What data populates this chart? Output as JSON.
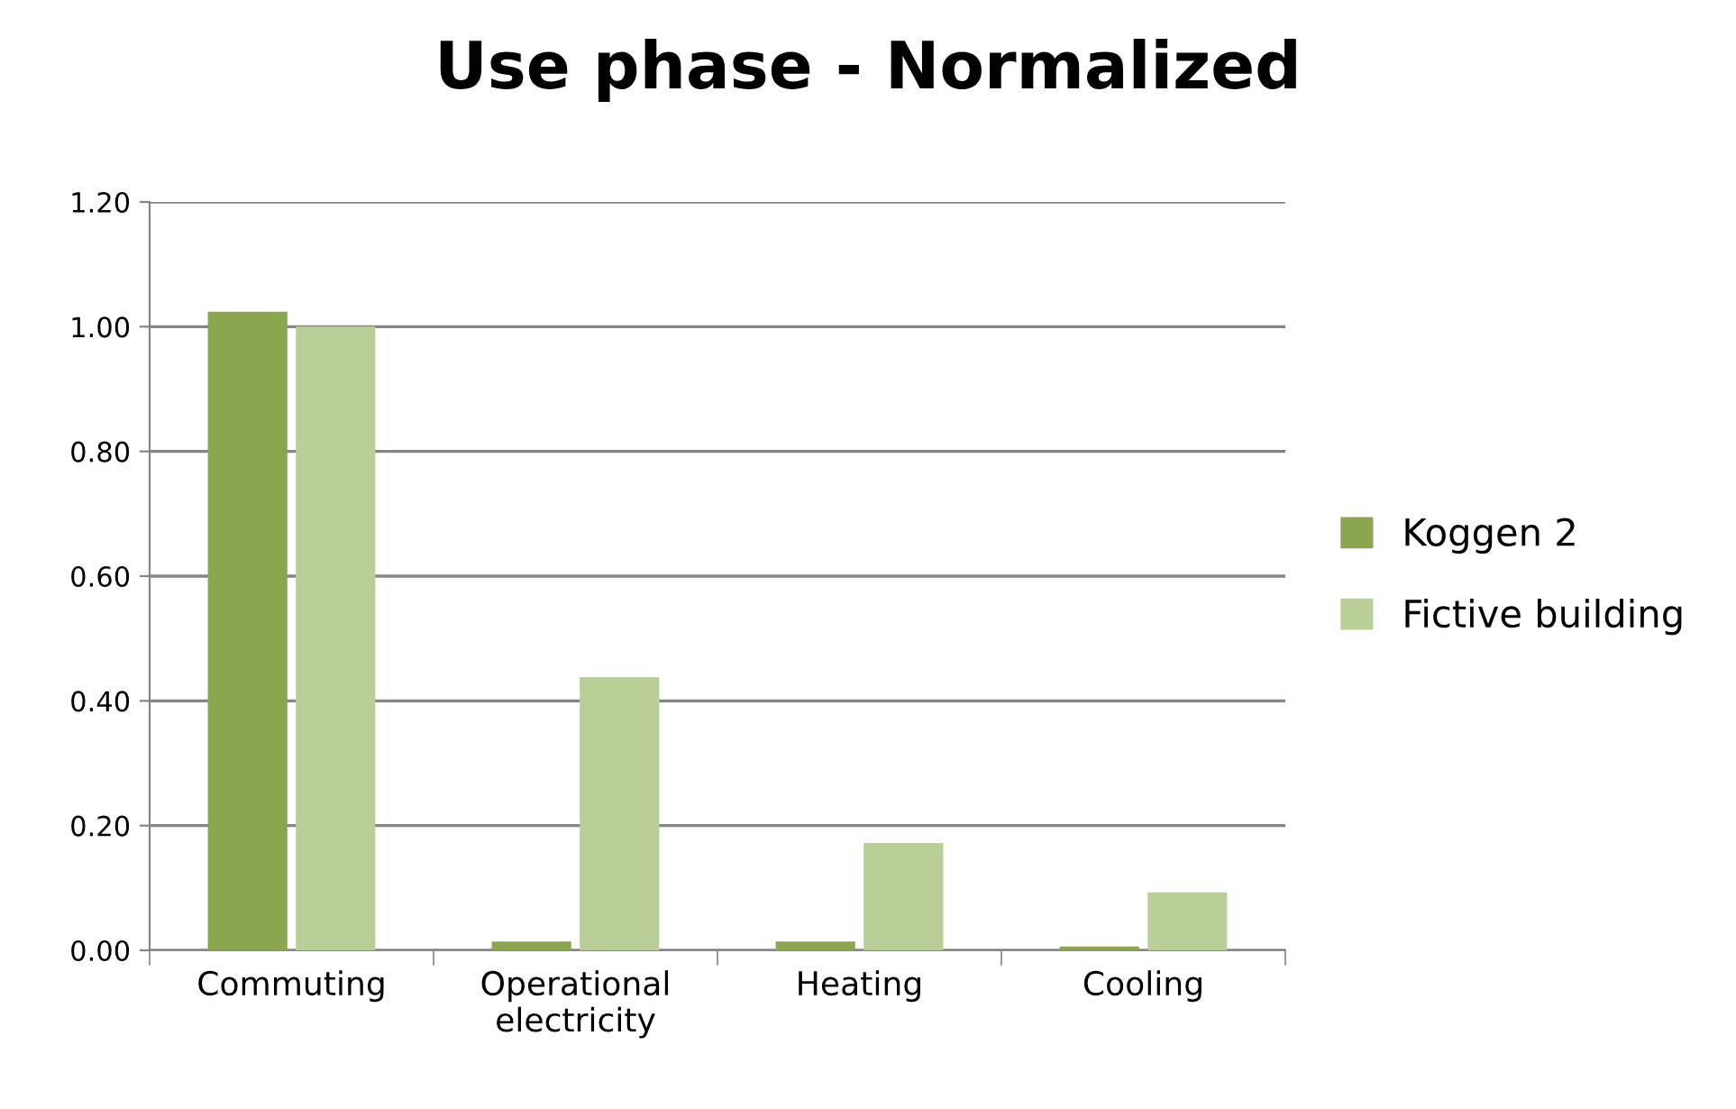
{
  "chart_data": {
    "type": "bar",
    "title": "Use phase - Normalized",
    "categories": [
      "Commuting",
      "Operational\nelectricity",
      "Heating",
      "Cooling"
    ],
    "series": [
      {
        "name": "Koggen 2",
        "color": "#8aa64e",
        "values": [
          1.024,
          0.014,
          0.014,
          0.006
        ]
      },
      {
        "name": "Fictive building",
        "color": "#b9cf96",
        "values": [
          1.0,
          0.438,
          0.172,
          0.093
        ]
      }
    ],
    "ylim": [
      0,
      1.2
    ],
    "yticks": [
      {
        "value": 0,
        "label": "0.00"
      },
      {
        "value": 0.2,
        "label": "0.20"
      },
      {
        "value": 0.4,
        "label": "0.40"
      },
      {
        "value": 0.6,
        "label": "0.60"
      },
      {
        "value": 0.8,
        "label": "0.80"
      },
      {
        "value": 1.0,
        "label": "1.00"
      },
      {
        "value": 1.2,
        "label": "1.20"
      }
    ],
    "grid": "y",
    "legend": "right"
  }
}
